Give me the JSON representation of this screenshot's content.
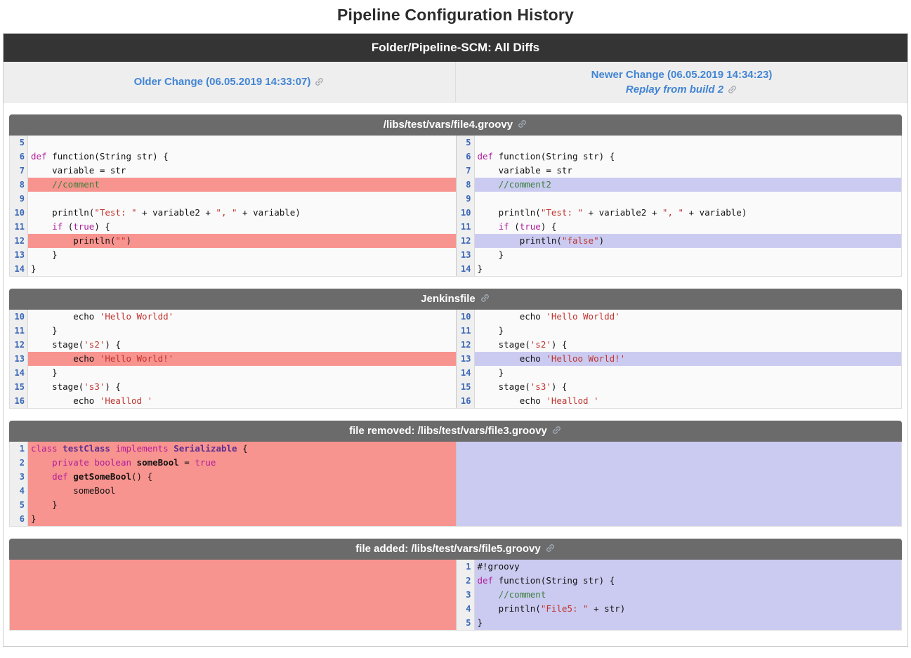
{
  "page_title": "Pipeline Configuration History",
  "topbar": {
    "title": "Folder/Pipeline-SCM: All Diffs"
  },
  "compare": {
    "older": {
      "label": "Older Change (06.05.2019 14:33:07)",
      "icon": "link-icon"
    },
    "newer": {
      "label": "Newer Change (06.05.2019 14:34:23)"
    },
    "replay": {
      "label": "Replay from build 2",
      "icon": "link-icon"
    }
  },
  "colors": {
    "removed_bg": "#f8948f",
    "added_bg": "#cbcbf1",
    "link_blue": "#4285d4",
    "topbar_bg": "#343434",
    "section_header_bg": "#6b6b6b",
    "line_number": "#3a67b8",
    "keyword": "#b01c9c",
    "string": "#c0332d",
    "comment": "#3c7e3c",
    "type": "#5b2f91"
  },
  "sections": [
    {
      "title": "/libs/test/vars/file4.groovy",
      "icon": "link-icon",
      "left": {
        "kind": "code",
        "rows": [
          {
            "n": 5,
            "hl": null,
            "tokens": []
          },
          {
            "n": 6,
            "hl": null,
            "tokens": [
              [
                "kwd",
                "def"
              ],
              [
                "pln",
                " function(String str) {"
              ]
            ]
          },
          {
            "n": 7,
            "hl": null,
            "tokens": [
              [
                "pln",
                "    variable = str"
              ]
            ]
          },
          {
            "n": 8,
            "hl": "removed",
            "tokens": [
              [
                "pln",
                "    "
              ],
              [
                "com",
                "//comment"
              ]
            ]
          },
          {
            "n": 9,
            "hl": null,
            "tokens": []
          },
          {
            "n": 10,
            "hl": null,
            "tokens": [
              [
                "pln",
                "    println("
              ],
              [
                "str",
                "\"Test: \""
              ],
              [
                "pln",
                " + variable2 + "
              ],
              [
                "str",
                "\", \""
              ],
              [
                "pln",
                " + variable)"
              ]
            ]
          },
          {
            "n": 11,
            "hl": null,
            "tokens": [
              [
                "pln",
                "    "
              ],
              [
                "kwd",
                "if"
              ],
              [
                "pln",
                " ("
              ],
              [
                "kwd",
                "true"
              ],
              [
                "pln",
                ") {"
              ]
            ]
          },
          {
            "n": 12,
            "hl": "removed",
            "tokens": [
              [
                "pln",
                "        println("
              ],
              [
                "str",
                "\"\""
              ],
              [
                "pln",
                ")"
              ]
            ]
          },
          {
            "n": 13,
            "hl": null,
            "tokens": [
              [
                "pln",
                "    }"
              ]
            ]
          },
          {
            "n": 14,
            "hl": null,
            "tokens": [
              [
                "pln",
                "}"
              ]
            ]
          }
        ]
      },
      "right": {
        "kind": "code",
        "rows": [
          {
            "n": 5,
            "hl": null,
            "tokens": []
          },
          {
            "n": 6,
            "hl": null,
            "tokens": [
              [
                "kwd",
                "def"
              ],
              [
                "pln",
                " function(String str) {"
              ]
            ]
          },
          {
            "n": 7,
            "hl": null,
            "tokens": [
              [
                "pln",
                "    variable = str"
              ]
            ]
          },
          {
            "n": 8,
            "hl": "added",
            "tokens": [
              [
                "pln",
                "    "
              ],
              [
                "com",
                "//comment2"
              ]
            ]
          },
          {
            "n": 9,
            "hl": null,
            "tokens": []
          },
          {
            "n": 10,
            "hl": null,
            "tokens": [
              [
                "pln",
                "    println("
              ],
              [
                "str",
                "\"Test: \""
              ],
              [
                "pln",
                " + variable2 + "
              ],
              [
                "str",
                "\", \""
              ],
              [
                "pln",
                " + variable)"
              ]
            ]
          },
          {
            "n": 11,
            "hl": null,
            "tokens": [
              [
                "pln",
                "    "
              ],
              [
                "kwd",
                "if"
              ],
              [
                "pln",
                " ("
              ],
              [
                "kwd",
                "true"
              ],
              [
                "pln",
                ") {"
              ]
            ]
          },
          {
            "n": 12,
            "hl": "added",
            "tokens": [
              [
                "pln",
                "        println("
              ],
              [
                "str",
                "\"false\""
              ],
              [
                "pln",
                ")"
              ]
            ]
          },
          {
            "n": 13,
            "hl": null,
            "tokens": [
              [
                "pln",
                "    }"
              ]
            ]
          },
          {
            "n": 14,
            "hl": null,
            "tokens": [
              [
                "pln",
                "}"
              ]
            ]
          }
        ]
      }
    },
    {
      "title": "Jenkinsfile",
      "icon": "link-icon",
      "left": {
        "kind": "code",
        "rows": [
          {
            "n": 10,
            "hl": null,
            "tokens": [
              [
                "pln",
                "        echo "
              ],
              [
                "str",
                "'Hello Worldd'"
              ]
            ]
          },
          {
            "n": 11,
            "hl": null,
            "tokens": [
              [
                "pln",
                "    }"
              ]
            ]
          },
          {
            "n": 12,
            "hl": null,
            "tokens": [
              [
                "pln",
                "    stage("
              ],
              [
                "str",
                "'s2'"
              ],
              [
                "pln",
                ") {"
              ]
            ]
          },
          {
            "n": 13,
            "hl": "removed",
            "tokens": [
              [
                "pln",
                "        echo "
              ],
              [
                "str",
                "'Hello World!'"
              ]
            ]
          },
          {
            "n": 14,
            "hl": null,
            "tokens": [
              [
                "pln",
                "    }"
              ]
            ]
          },
          {
            "n": 15,
            "hl": null,
            "tokens": [
              [
                "pln",
                "    stage("
              ],
              [
                "str",
                "'s3'"
              ],
              [
                "pln",
                ") {"
              ]
            ]
          },
          {
            "n": 16,
            "hl": null,
            "tokens": [
              [
                "pln",
                "        echo "
              ],
              [
                "str",
                "'Heallod '"
              ]
            ]
          }
        ]
      },
      "right": {
        "kind": "code",
        "rows": [
          {
            "n": 10,
            "hl": null,
            "tokens": [
              [
                "pln",
                "        echo "
              ],
              [
                "str",
                "'Hello Worldd'"
              ]
            ]
          },
          {
            "n": 11,
            "hl": null,
            "tokens": [
              [
                "pln",
                "    }"
              ]
            ]
          },
          {
            "n": 12,
            "hl": null,
            "tokens": [
              [
                "pln",
                "    stage("
              ],
              [
                "str",
                "'s2'"
              ],
              [
                "pln",
                ") {"
              ]
            ]
          },
          {
            "n": 13,
            "hl": "added",
            "tokens": [
              [
                "pln",
                "        echo "
              ],
              [
                "str",
                "'Helloo World!'"
              ]
            ]
          },
          {
            "n": 14,
            "hl": null,
            "tokens": [
              [
                "pln",
                "    }"
              ]
            ]
          },
          {
            "n": 15,
            "hl": null,
            "tokens": [
              [
                "pln",
                "    stage("
              ],
              [
                "str",
                "'s3'"
              ],
              [
                "pln",
                ") {"
              ]
            ]
          },
          {
            "n": 16,
            "hl": null,
            "tokens": [
              [
                "pln",
                "        echo "
              ],
              [
                "str",
                "'Heallod '"
              ]
            ]
          }
        ]
      }
    },
    {
      "title": "file removed: /libs/test/vars/file3.groovy",
      "icon": "link-icon",
      "left": {
        "kind": "code",
        "rows": [
          {
            "n": 1,
            "hl": "removed",
            "tokens": [
              [
                "kwd",
                "class"
              ],
              [
                "pln",
                " "
              ],
              [
                "typ",
                "testClass"
              ],
              [
                "pln",
                " "
              ],
              [
                "kwd",
                "implements"
              ],
              [
                "pln",
                " "
              ],
              [
                "typ",
                "Serializable"
              ],
              [
                "pln",
                " {"
              ]
            ]
          },
          {
            "n": 2,
            "hl": "removed",
            "tokens": [
              [
                "pln",
                "    "
              ],
              [
                "kwd",
                "private"
              ],
              [
                "pln",
                " "
              ],
              [
                "kwd",
                "boolean"
              ],
              [
                "pln",
                " "
              ],
              [
                "bold",
                "someBool"
              ],
              [
                "pln",
                " = "
              ],
              [
                "kwd",
                "true"
              ]
            ]
          },
          {
            "n": 3,
            "hl": "removed",
            "tokens": [
              [
                "pln",
                "    "
              ],
              [
                "kwd",
                "def"
              ],
              [
                "pln",
                " "
              ],
              [
                "bold",
                "getSomeBool"
              ],
              [
                "pln",
                "() {"
              ]
            ]
          },
          {
            "n": 4,
            "hl": "removed",
            "tokens": [
              [
                "pln",
                "        someBool"
              ]
            ]
          },
          {
            "n": 5,
            "hl": "removed",
            "tokens": [
              [
                "pln",
                "    }"
              ]
            ]
          },
          {
            "n": 6,
            "hl": "removed",
            "tokens": [
              [
                "pln",
                "}"
              ]
            ]
          }
        ]
      },
      "right": {
        "kind": "block",
        "hl": "added",
        "rows": 6
      }
    },
    {
      "title": "file added: /libs/test/vars/file5.groovy",
      "icon": "link-icon",
      "left": {
        "kind": "block",
        "hl": "removed",
        "rows": 5
      },
      "right": {
        "kind": "code",
        "rows": [
          {
            "n": 1,
            "hl": "added",
            "tokens": [
              [
                "pln",
                "#!groovy"
              ]
            ]
          },
          {
            "n": 2,
            "hl": "added",
            "tokens": [
              [
                "kwd",
                "def"
              ],
              [
                "pln",
                " function(String str) {"
              ]
            ]
          },
          {
            "n": 3,
            "hl": "added",
            "tokens": [
              [
                "pln",
                "    "
              ],
              [
                "com",
                "//comment"
              ]
            ]
          },
          {
            "n": 4,
            "hl": "added",
            "tokens": [
              [
                "pln",
                "    println("
              ],
              [
                "str",
                "\"File5: \""
              ],
              [
                "pln",
                " + str)"
              ]
            ]
          },
          {
            "n": 5,
            "hl": "added",
            "tokens": [
              [
                "pln",
                "}"
              ]
            ]
          }
        ]
      }
    }
  ]
}
